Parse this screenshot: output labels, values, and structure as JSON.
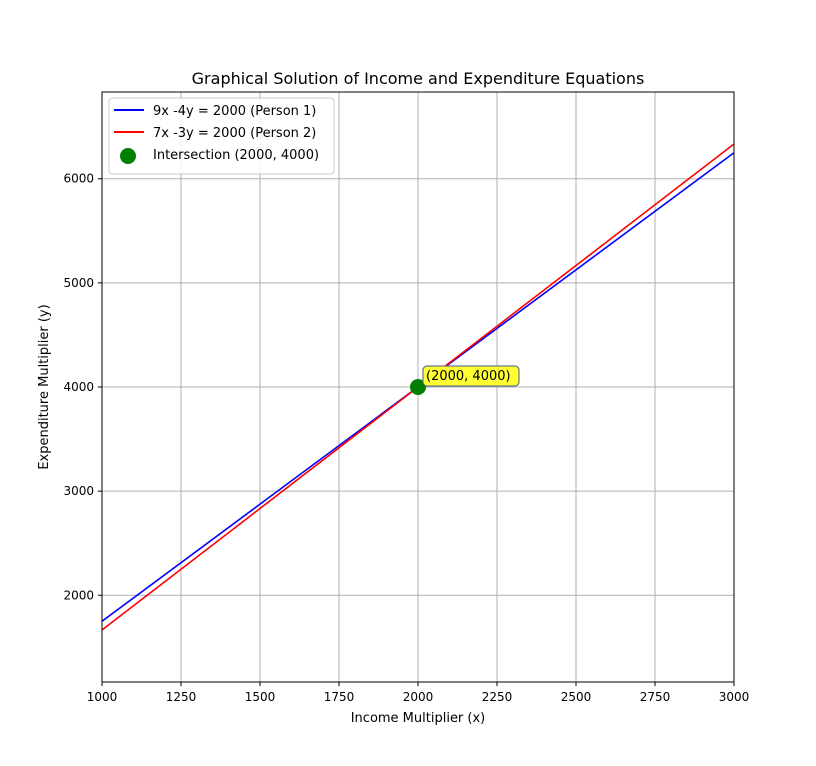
{
  "chart_data": {
    "type": "line",
    "title": "Graphical Solution of Income and Expenditure Equations",
    "xlabel": "Income Multiplier (x)",
    "ylabel": "Expenditure Multiplier (y)",
    "xlim": [
      1000,
      3000
    ],
    "ylim": [
      1167,
      6833
    ],
    "xticks": [
      1000,
      1250,
      1500,
      1750,
      2000,
      2250,
      2500,
      2750,
      3000
    ],
    "yticks": [
      2000,
      3000,
      4000,
      5000,
      6000
    ],
    "grid": true,
    "legend_position": "upper-left",
    "series": [
      {
        "name": "9x -4y = 2000 (Person 1)",
        "color": "#0000ff",
        "x": [
          1000,
          3000
        ],
        "y": [
          1750,
          6250
        ]
      },
      {
        "name": "7x -3y = 2000 (Person 2)",
        "color": "#ff0000",
        "x": [
          1000,
          3000
        ],
        "y": [
          1666.67,
          6333.33
        ]
      }
    ],
    "points": [
      {
        "name": "Intersection (2000, 4000)",
        "x": 2000,
        "y": 4000,
        "color": "#008000",
        "annotation": "(2000, 4000)",
        "annotation_bg": "#ffff33"
      }
    ]
  }
}
